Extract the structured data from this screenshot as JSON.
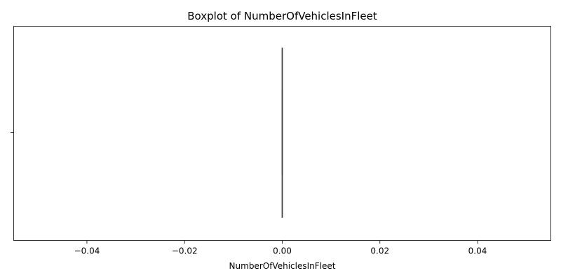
{
  "chart_data": {
    "type": "box",
    "title": "Boxplot of NumberOfVehiclesInFleet",
    "xlabel": "NumberOfVehiclesInFleet",
    "ylabel": "",
    "orientation": "horizontal",
    "xlim": [
      -0.055,
      0.055
    ],
    "xticks": [
      -0.04,
      -0.02,
      0.0,
      0.02,
      0.04
    ],
    "xtick_labels": [
      "−0.04",
      "−0.02",
      "0.00",
      "0.02",
      "0.04"
    ],
    "series": [
      {
        "min": 0,
        "q1": 0,
        "median": 0,
        "q3": 0,
        "max": 0
      }
    ],
    "grid": false,
    "colors": {
      "box_line": "#3f3f3f",
      "axes": "#000000"
    }
  }
}
